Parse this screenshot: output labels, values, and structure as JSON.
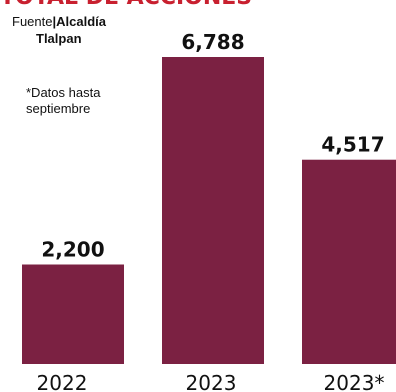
{
  "chart_data": {
    "type": "bar",
    "title": "TOTAL DE ACCIONES",
    "categories": [
      "2022",
      "2023",
      "2023*"
    ],
    "values": [
      2200,
      6788,
      4517
    ],
    "value_labels": [
      "2,200",
      "6,788",
      "4,517"
    ],
    "ylim": [
      0,
      6788
    ],
    "xlabel": "",
    "ylabel": "",
    "grid": false,
    "bar_color": "#7b2142",
    "source_prefix": "Fuente",
    "source_name_line1": "Alcaldía",
    "source_name_line2": "Tlalpan",
    "note_line1": "*Datos hasta",
    "note_line2": "septiembre"
  }
}
